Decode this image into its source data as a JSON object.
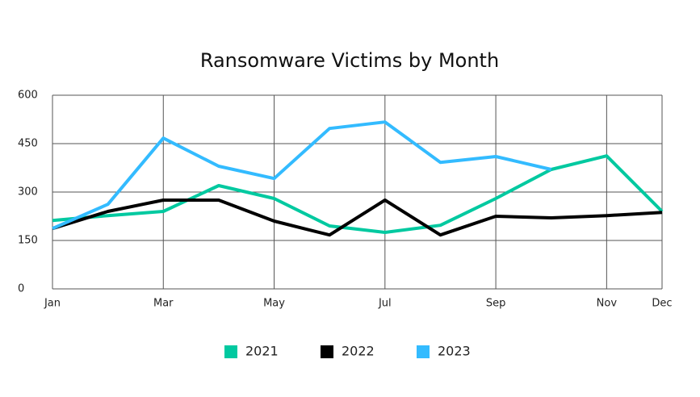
{
  "chart_data": {
    "type": "line",
    "title": "Ransomware Victims by Month",
    "categories": [
      "Jan",
      null,
      "Mar",
      null,
      "May",
      null,
      "Jul",
      null,
      "Sep",
      null,
      "Nov",
      "Dec"
    ],
    "series": [
      {
        "name": "2021",
        "color": "#00c9a0",
        "values": [
          212,
          227,
          240,
          320,
          280,
          195,
          175,
          197,
          280,
          370,
          412,
          240
        ]
      },
      {
        "name": "2022",
        "color": "#000000",
        "values": [
          187,
          240,
          275,
          275,
          210,
          167,
          275,
          167,
          225,
          220,
          227,
          237
        ]
      },
      {
        "name": "2023",
        "color": "#33bbff",
        "values": [
          187,
          262,
          467,
          380,
          342,
          497,
          517,
          392,
          410,
          370,
          null,
          null
        ]
      }
    ],
    "ylim": [
      0,
      600
    ],
    "yticks": [
      0,
      150,
      300,
      450,
      600
    ],
    "grid": true,
    "legend": "bottom"
  }
}
